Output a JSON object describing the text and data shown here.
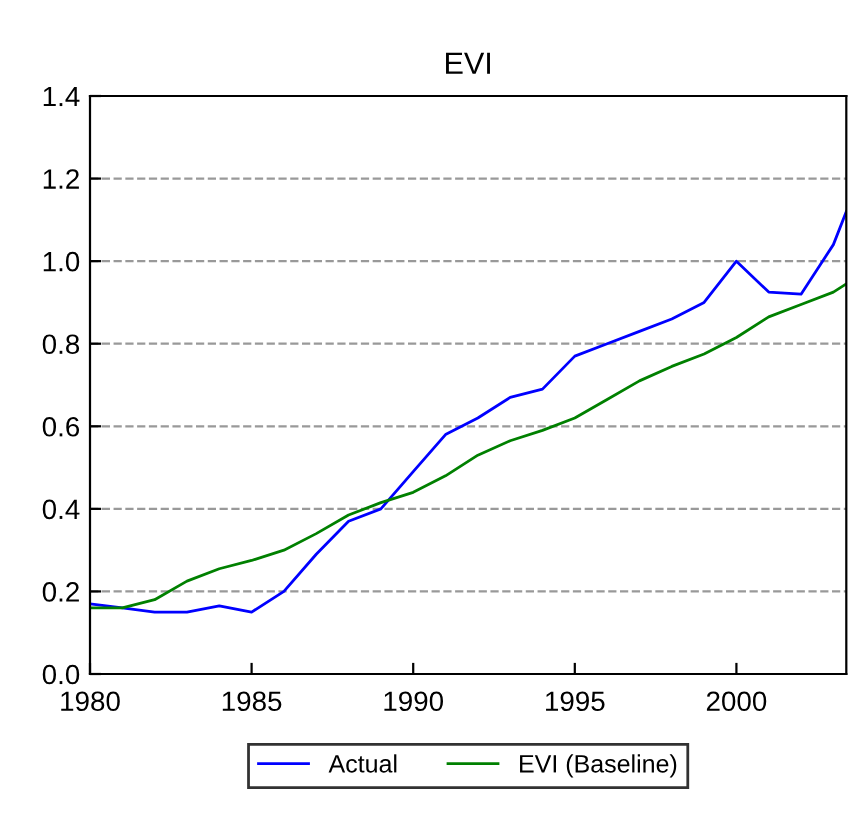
{
  "chart_data": {
    "type": "line",
    "title": "EVI",
    "x": [
      1980,
      1981,
      1982,
      1983,
      1984,
      1985,
      1986,
      1987,
      1988,
      1989,
      1990,
      1991,
      1992,
      1993,
      1994,
      1995,
      1996,
      1997,
      1998,
      1999,
      2000,
      2001,
      2002,
      2003,
      2003.4
    ],
    "series": [
      {
        "name": "Actual",
        "color": "#0000ff",
        "values": [
          0.17,
          0.16,
          0.15,
          0.15,
          0.165,
          0.15,
          0.2,
          0.29,
          0.37,
          0.4,
          0.49,
          0.58,
          0.62,
          0.67,
          0.69,
          0.77,
          0.8,
          0.83,
          0.86,
          0.9,
          1.0,
          0.925,
          0.92,
          1.04,
          1.12
        ]
      },
      {
        "name": "EVI (Baseline)",
        "color": "#008000",
        "values": [
          0.16,
          0.16,
          0.18,
          0.225,
          0.255,
          0.275,
          0.3,
          0.34,
          0.385,
          0.415,
          0.44,
          0.48,
          0.53,
          0.565,
          0.59,
          0.62,
          0.665,
          0.71,
          0.745,
          0.775,
          0.815,
          0.865,
          0.895,
          0.925,
          0.945
        ]
      }
    ],
    "xlim": [
      1980,
      2003.4
    ],
    "xticks": [
      1980,
      1985,
      1990,
      1995,
      2000
    ],
    "ylim": [
      0,
      1.4
    ],
    "yticks": [
      {
        "value": 0,
        "label": "0.0"
      },
      0.2,
      0.4,
      0.6,
      0.8,
      {
        "value": 1,
        "label": "1.0"
      },
      1.2,
      1.4
    ],
    "grid": "y",
    "legend": "bottom",
    "marker": "none",
    "line_style": "solid"
  }
}
